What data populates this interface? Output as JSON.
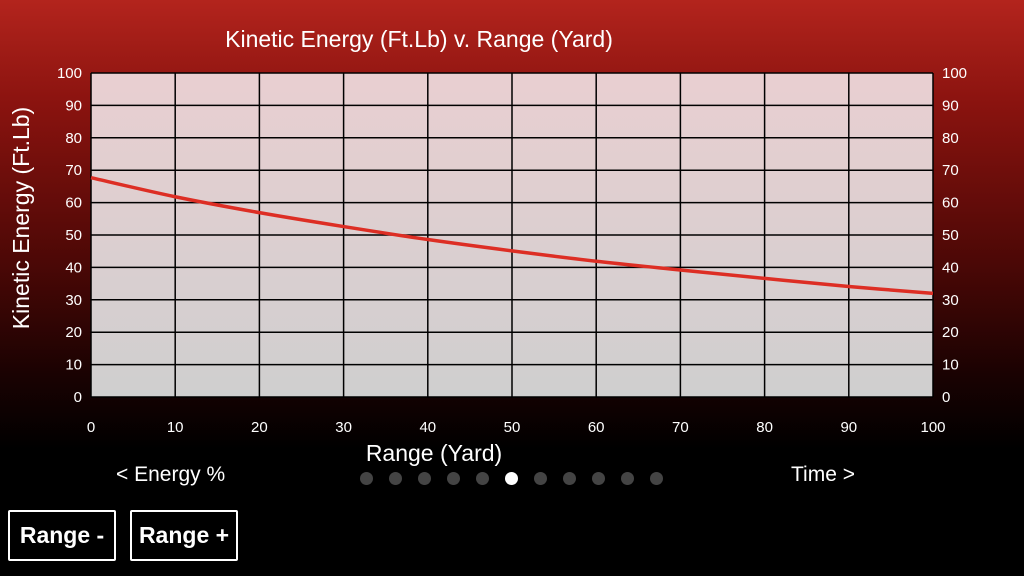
{
  "chart_data": {
    "type": "line",
    "title": "Kinetic Energy (Ft.Lb) v. Range (Yard)",
    "xlabel": "Range (Yard)",
    "ylabel": "Kinetic Energy (Ft.Lb)",
    "xlim": [
      0,
      100
    ],
    "ylim": [
      0,
      100
    ],
    "x_ticks": [
      "0",
      "10",
      "20",
      "30",
      "40",
      "50",
      "60",
      "70",
      "80",
      "90",
      "100"
    ],
    "y_ticks": [
      "0",
      "10",
      "20",
      "30",
      "40",
      "50",
      "60",
      "70",
      "80",
      "90",
      "100"
    ],
    "grid": true,
    "line_color": "#dd2e24",
    "series": [
      {
        "name": "Kinetic Energy",
        "x": [
          0,
          10,
          20,
          30,
          40,
          50,
          60,
          70,
          80,
          90,
          100
        ],
        "y": [
          67.7,
          61.8,
          56.9,
          52.6,
          48.6,
          45.1,
          41.9,
          39.2,
          36.6,
          34.1,
          32.0
        ]
      }
    ]
  },
  "nav": {
    "prev_label": "< Energy %",
    "next_label": "Time >",
    "page_count": 11,
    "active_page": 5
  },
  "buttons": {
    "range_minus": "Range -",
    "range_plus": "Range +"
  }
}
